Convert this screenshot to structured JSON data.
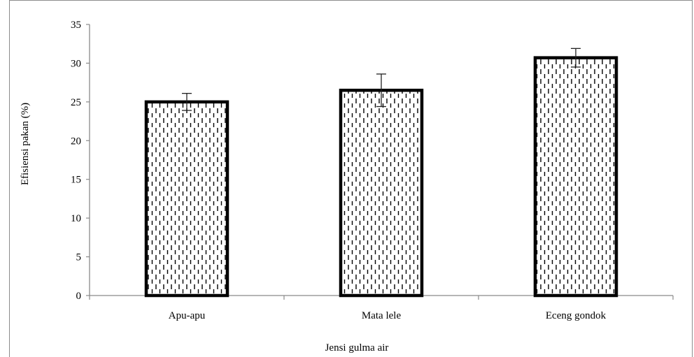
{
  "chart_data": {
    "type": "bar",
    "categories": [
      "Apu-apu",
      "Mata lele",
      "Eceng gondok"
    ],
    "values": [
      25.0,
      26.5,
      30.7
    ],
    "error": [
      1.1,
      2.1,
      1.2
    ],
    "xlabel": "Jensi gulma air",
    "ylabel": "Efisiensi pakan (%)",
    "ylim": [
      0,
      35
    ],
    "yticks": [
      "0",
      "5",
      "10",
      "15",
      "20",
      "25",
      "30",
      "35"
    ],
    "grid": false,
    "legend": "none",
    "bar_pattern": "white with dashed vertical hatching",
    "bar_outline_color": "#000000"
  }
}
